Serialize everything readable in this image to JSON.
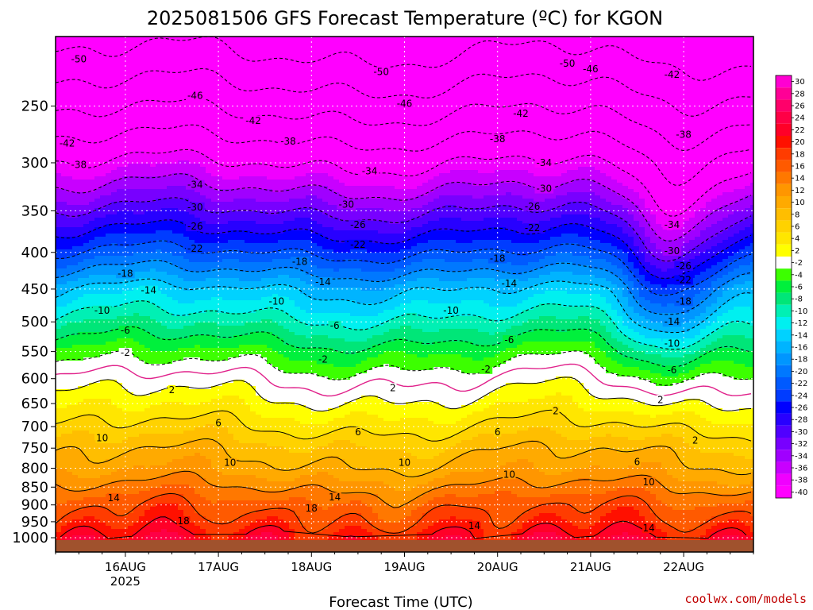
{
  "title": "2025081506 GFS Forecast Temperature (ºC) for KGON",
  "xlabel": "Forecast Time (UTC)",
  "credit": "coolwx.com/models",
  "colors": {
    "ground": "#a0522d",
    "credit": "#c00000",
    "freezing_line": "#e0208a"
  },
  "chart_data": {
    "type": "heatmap",
    "title": "2025081506 GFS Forecast Temperature (ºC) for KGON",
    "xlabel": "Forecast Time (UTC)",
    "ylabel": "",
    "y_scale": "log-pressure (inverted)",
    "ylim": [
      1000,
      200
    ],
    "xlim": [
      "2025-08-15T06Z",
      "2025-08-22T18Z"
    ],
    "y_ticks": [
      250,
      300,
      350,
      400,
      450,
      500,
      550,
      600,
      650,
      700,
      750,
      800,
      850,
      900,
      950,
      1000
    ],
    "x_ticks": [
      {
        "time": "2025-08-16T00Z",
        "label": "16AUG",
        "sublabel": "2025"
      },
      {
        "time": "2025-08-17T00Z",
        "label": "17AUG",
        "sublabel": ""
      },
      {
        "time": "2025-08-18T00Z",
        "label": "18AUG",
        "sublabel": ""
      },
      {
        "time": "2025-08-19T00Z",
        "label": "19AUG",
        "sublabel": ""
      },
      {
        "time": "2025-08-20T00Z",
        "label": "20AUG",
        "sublabel": ""
      },
      {
        "time": "2025-08-21T00Z",
        "label": "21AUG",
        "sublabel": ""
      },
      {
        "time": "2025-08-22T00Z",
        "label": "22AUG",
        "sublabel": ""
      }
    ],
    "grid": true,
    "legend": "colorbar right",
    "colorbar": [
      {
        "label": "30",
        "color": "#ff00d2"
      },
      {
        "label": "28",
        "color": "#ff0096"
      },
      {
        "label": "26",
        "color": "#ff006a"
      },
      {
        "label": "24",
        "color": "#ff0046"
      },
      {
        "label": "22",
        "color": "#ff0028"
      },
      {
        "label": "20",
        "color": "#ff1000"
      },
      {
        "label": "18",
        "color": "#ff3c00"
      },
      {
        "label": "16",
        "color": "#ff5a00"
      },
      {
        "label": "14",
        "color": "#ff7800"
      },
      {
        "label": "12",
        "color": "#ff9600"
      },
      {
        "label": "10",
        "color": "#ffaa00"
      },
      {
        "label": "8",
        "color": "#ffbe00"
      },
      {
        "label": "6",
        "color": "#ffd200"
      },
      {
        "label": "4",
        "color": "#ffe600"
      },
      {
        "label": "2",
        "color": "#ffff00"
      },
      {
        "label": "-2",
        "color": "#ffffff"
      },
      {
        "label": "-4",
        "color": "#3cff00"
      },
      {
        "label": "-6",
        "color": "#00f03c"
      },
      {
        "label": "-8",
        "color": "#00e678"
      },
      {
        "label": "-10",
        "color": "#00f0b4"
      },
      {
        "label": "-12",
        "color": "#00f0f0"
      },
      {
        "label": "-14",
        "color": "#00d2ff"
      },
      {
        "label": "-16",
        "color": "#00b4ff"
      },
      {
        "label": "-18",
        "color": "#0096ff"
      },
      {
        "label": "-20",
        "color": "#0078ff"
      },
      {
        "label": "-22",
        "color": "#005aff"
      },
      {
        "label": "-24",
        "color": "#003cff"
      },
      {
        "label": "-26",
        "color": "#0000ff"
      },
      {
        "label": "-28",
        "color": "#2800ff"
      },
      {
        "label": "-30",
        "color": "#5000ff"
      },
      {
        "label": "-32",
        "color": "#7800ff"
      },
      {
        "label": "-34",
        "color": "#a000ff"
      },
      {
        "label": "-36",
        "color": "#c800ff"
      },
      {
        "label": "-38",
        "color": "#f000ff"
      },
      {
        "label": "-40",
        "color": "#ff00ff"
      }
    ],
    "profile_breakpoints": [
      {
        "p": 200,
        "t": -56
      },
      {
        "p": 250,
        "t": -47
      },
      {
        "p": 300,
        "t": -38
      },
      {
        "p": 350,
        "t": -30
      },
      {
        "p": 400,
        "t": -22
      },
      {
        "p": 450,
        "t": -14
      },
      {
        "p": 500,
        "t": -9
      },
      {
        "p": 550,
        "t": -4
      },
      {
        "p": 600,
        "t": 0
      },
      {
        "p": 650,
        "t": 3
      },
      {
        "p": 700,
        "t": 6
      },
      {
        "p": 750,
        "t": 9
      },
      {
        "p": 800,
        "t": 11
      },
      {
        "p": 850,
        "t": 14
      },
      {
        "p": 900,
        "t": 17
      },
      {
        "p": 950,
        "t": 19
      },
      {
        "p": 1000,
        "t": 22
      }
    ],
    "contour_labels": [
      {
        "text": "-50",
        "time": "2025-08-15T12Z",
        "p": 215
      },
      {
        "text": "-50",
        "time": "2025-08-18T18Z",
        "p": 224
      },
      {
        "text": "-50",
        "time": "2025-08-20T18Z",
        "p": 218
      },
      {
        "text": "-46",
        "time": "2025-08-16T18Z",
        "p": 242
      },
      {
        "text": "-46",
        "time": "2025-08-19T00Z",
        "p": 248
      },
      {
        "text": "-46",
        "time": "2025-08-21T00Z",
        "p": 222
      },
      {
        "text": "-42",
        "time": "2025-08-15T09Z",
        "p": 282
      },
      {
        "text": "-42",
        "time": "2025-08-17T09Z",
        "p": 262
      },
      {
        "text": "-42",
        "time": "2025-08-20T06Z",
        "p": 256
      },
      {
        "text": "-42",
        "time": "2025-08-21T21Z",
        "p": 226
      },
      {
        "text": "-38",
        "time": "2025-08-15T12Z",
        "p": 302
      },
      {
        "text": "-38",
        "time": "2025-08-17T18Z",
        "p": 280
      },
      {
        "text": "-38",
        "time": "2025-08-20T00Z",
        "p": 278
      },
      {
        "text": "-38",
        "time": "2025-08-22T00Z",
        "p": 274
      },
      {
        "text": "-34",
        "time": "2025-08-16T18Z",
        "p": 322
      },
      {
        "text": "-34",
        "time": "2025-08-18T15Z",
        "p": 308
      },
      {
        "text": "-34",
        "time": "2025-08-20T12Z",
        "p": 300
      },
      {
        "text": "-34",
        "time": "2025-08-21T21Z",
        "p": 366
      },
      {
        "text": "-30",
        "time": "2025-08-16T18Z",
        "p": 346
      },
      {
        "text": "-30",
        "time": "2025-08-18T09Z",
        "p": 343
      },
      {
        "text": "-30",
        "time": "2025-08-20T12Z",
        "p": 326
      },
      {
        "text": "-30",
        "time": "2025-08-21T21Z",
        "p": 398
      },
      {
        "text": "-26",
        "time": "2025-08-16T18Z",
        "p": 368
      },
      {
        "text": "-26",
        "time": "2025-08-18T12Z",
        "p": 366
      },
      {
        "text": "-26",
        "time": "2025-08-20T09Z",
        "p": 345
      },
      {
        "text": "-26",
        "time": "2025-08-22T00Z",
        "p": 418
      },
      {
        "text": "-22",
        "time": "2025-08-16T18Z",
        "p": 395
      },
      {
        "text": "-22",
        "time": "2025-08-18T12Z",
        "p": 390
      },
      {
        "text": "-22",
        "time": "2025-08-20T09Z",
        "p": 370
      },
      {
        "text": "-22",
        "time": "2025-08-22T00Z",
        "p": 437
      },
      {
        "text": "-18",
        "time": "2025-08-16T00Z",
        "p": 428
      },
      {
        "text": "-18",
        "time": "2025-08-17T21Z",
        "p": 412
      },
      {
        "text": "-18",
        "time": "2025-08-20T00Z",
        "p": 408
      },
      {
        "text": "-18",
        "time": "2025-08-22T00Z",
        "p": 468
      },
      {
        "text": "-14",
        "time": "2025-08-16T06Z",
        "p": 452
      },
      {
        "text": "-14",
        "time": "2025-08-18T03Z",
        "p": 440
      },
      {
        "text": "-14",
        "time": "2025-08-20T03Z",
        "p": 442
      },
      {
        "text": "-14",
        "time": "2025-08-21T21Z",
        "p": 500
      },
      {
        "text": "-10",
        "time": "2025-08-15T18Z",
        "p": 482
      },
      {
        "text": "-10",
        "time": "2025-08-17T15Z",
        "p": 468
      },
      {
        "text": "-10",
        "time": "2025-08-19T12Z",
        "p": 482
      },
      {
        "text": "-10",
        "time": "2025-08-21T21Z",
        "p": 536
      },
      {
        "text": "-6",
        "time": "2025-08-16T00Z",
        "p": 514
      },
      {
        "text": "-6",
        "time": "2025-08-18T06Z",
        "p": 506
      },
      {
        "text": "-6",
        "time": "2025-08-20T03Z",
        "p": 530
      },
      {
        "text": "-6",
        "time": "2025-08-21T21Z",
        "p": 584
      },
      {
        "text": "-2",
        "time": "2025-08-16T00Z",
        "p": 552
      },
      {
        "text": "-2",
        "time": "2025-08-18T03Z",
        "p": 564
      },
      {
        "text": "-2",
        "time": "2025-08-19T21Z",
        "p": 582
      },
      {
        "text": "2",
        "time": "2025-08-16T12Z",
        "p": 622
      },
      {
        "text": "2",
        "time": "2025-08-18T21Z",
        "p": 618
      },
      {
        "text": "2",
        "time": "2025-08-20T15Z",
        "p": 666
      },
      {
        "text": "2",
        "time": "2025-08-21T18Z",
        "p": 642
      },
      {
        "text": "2",
        "time": "2025-08-22T03Z",
        "p": 732
      },
      {
        "text": "6",
        "time": "2025-08-17T00Z",
        "p": 692
      },
      {
        "text": "6",
        "time": "2025-08-18T12Z",
        "p": 712
      },
      {
        "text": "6",
        "time": "2025-08-20T00Z",
        "p": 712
      },
      {
        "text": "6",
        "time": "2025-08-21T12Z",
        "p": 784
      },
      {
        "text": "10",
        "time": "2025-08-15T18Z",
        "p": 726
      },
      {
        "text": "10",
        "time": "2025-08-17T03Z",
        "p": 786
      },
      {
        "text": "10",
        "time": "2025-08-19T00Z",
        "p": 786
      },
      {
        "text": "10",
        "time": "2025-08-20T03Z",
        "p": 816
      },
      {
        "text": "10",
        "time": "2025-08-21T15Z",
        "p": 836
      },
      {
        "text": "14",
        "time": "2025-08-15T21Z",
        "p": 880
      },
      {
        "text": "14",
        "time": "2025-08-18T06Z",
        "p": 878
      },
      {
        "text": "14",
        "time": "2025-08-19T18Z",
        "p": 962
      },
      {
        "text": "14",
        "time": "2025-08-21T15Z",
        "p": 970
      },
      {
        "text": "18",
        "time": "2025-08-16T15Z",
        "p": 948
      },
      {
        "text": "18",
        "time": "2025-08-18T00Z",
        "p": 910
      }
    ]
  }
}
